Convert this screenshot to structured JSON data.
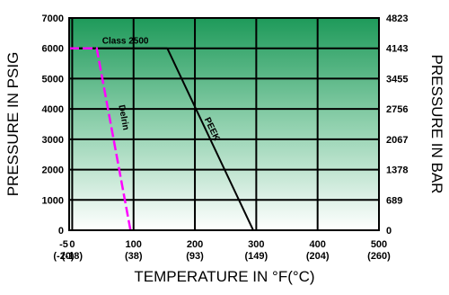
{
  "chart_data": {
    "type": "line",
    "title": "",
    "xlabel": "TEMPERATURE IN °F(°C)",
    "ylabel_left": "PRESSURE IN PSIG",
    "ylabel_right": "PRESSURE IN BAR",
    "xlim": [
      -5,
      500
    ],
    "ylim": [
      0,
      7000
    ],
    "x_ticks": [
      {
        "value": -5,
        "label": "-5",
        "label2": "(-20)"
      },
      {
        "value": 0,
        "label": "0",
        "label2": "(-18)"
      },
      {
        "value": 100,
        "label": "100",
        "label2": "(38)"
      },
      {
        "value": 200,
        "label": "200",
        "label2": "(93)"
      },
      {
        "value": 300,
        "label": "300",
        "label2": "(149)"
      },
      {
        "value": 400,
        "label": "400",
        "label2": "(204)"
      },
      {
        "value": 500,
        "label": "500",
        "label2": "(260)"
      }
    ],
    "y_ticks_left": [
      {
        "value": 0,
        "label": "0"
      },
      {
        "value": 1000,
        "label": "1000"
      },
      {
        "value": 2000,
        "label": "2000"
      },
      {
        "value": 3000,
        "label": "3000"
      },
      {
        "value": 4000,
        "label": "4000"
      },
      {
        "value": 5000,
        "label": "5000"
      },
      {
        "value": 6000,
        "label": "6000"
      },
      {
        "value": 7000,
        "label": "7000"
      }
    ],
    "y_ticks_right": [
      {
        "value": 0,
        "label": "0"
      },
      {
        "value": 1000,
        "label": "689"
      },
      {
        "value": 2000,
        "label": "1378"
      },
      {
        "value": 3000,
        "label": "2067"
      },
      {
        "value": 4000,
        "label": "2756"
      },
      {
        "value": 5000,
        "label": "3455"
      },
      {
        "value": 6000,
        "label": "4143"
      },
      {
        "value": 7000,
        "label": "4823"
      }
    ],
    "grid": true,
    "background": "green-gradient",
    "series": [
      {
        "name": "Class 2500",
        "color": "#000000",
        "style": "solid",
        "points": [
          [
            -5,
            6000
          ],
          [
            155,
            6000
          ]
        ]
      },
      {
        "name": "PEEK",
        "color": "#000000",
        "style": "solid",
        "points": [
          [
            155,
            6000
          ],
          [
            295,
            0
          ]
        ]
      },
      {
        "name": "Delrin",
        "color": "#ff00ff",
        "style": "dashed",
        "points": [
          [
            -5,
            6000
          ],
          [
            40,
            6000
          ],
          [
            95,
            0
          ]
        ]
      }
    ]
  }
}
